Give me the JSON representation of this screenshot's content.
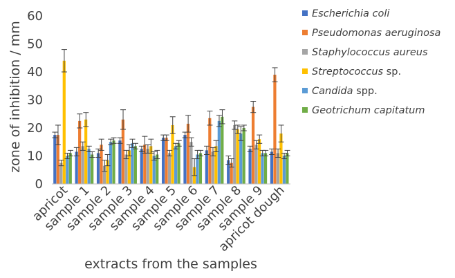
{
  "chart_data": {
    "type": "bar",
    "title": "",
    "xlabel": "extracts from the samples",
    "ylabel": "zone of inhibition / mm",
    "ylim": [
      0,
      60
    ],
    "yticks": [
      0,
      10,
      20,
      30,
      40,
      50,
      60
    ],
    "grid": false,
    "legend_position": "right",
    "categories": [
      "apricot",
      "sample 1",
      "sample 2",
      "sample 3",
      "sample 4",
      "sample 5",
      "sample 6",
      "sample 7",
      "sample 8",
      "sample 9",
      "apricot dough"
    ],
    "series": [
      {
        "name": "Escherichia coli",
        "name_suffix": "",
        "color": "#4472C4",
        "values": [
          17.5,
          11.5,
          11.0,
          15.5,
          12.5,
          16.5,
          17.5,
          12.0,
          8.5,
          12.5,
          11.5
        ],
        "errors": [
          1.0,
          1.5,
          1.5,
          1.0,
          1.0,
          1.0,
          1.0,
          1.5,
          1.5,
          1.0,
          1.0
        ]
      },
      {
        "name": "Pseudomonas aeruginosa",
        "name_suffix": "",
        "color": "#ED7D31",
        "values": [
          17.5,
          22.5,
          14.0,
          23.0,
          14.0,
          16.5,
          21.5,
          23.5,
          7.5,
          27.5,
          39.0
        ],
        "errors": [
          3.5,
          2.5,
          2.0,
          3.5,
          3.0,
          1.0,
          3.0,
          2.5,
          1.5,
          2.0,
          2.5
        ]
      },
      {
        "name": "Staphylococcus aureus",
        "name_suffix": "",
        "color": "#A5A5A5",
        "values": [
          7.5,
          13.5,
          6.5,
          10.5,
          12.5,
          11.0,
          15.0,
          11.5,
          21.0,
          14.0,
          11.0
        ],
        "errors": [
          1.0,
          1.5,
          2.0,
          1.5,
          1.5,
          1.0,
          1.5,
          1.5,
          1.5,
          1.5,
          1.5
        ]
      },
      {
        "name": "Streptococcus",
        "name_suffix": " sp.",
        "color": "#FFC000",
        "values": [
          44.0,
          23.0,
          8.5,
          12.0,
          13.5,
          21.0,
          6.0,
          13.5,
          19.5,
          16.0,
          18.0
        ],
        "errors": [
          4.0,
          2.5,
          2.0,
          2.0,
          2.5,
          3.0,
          3.0,
          2.0,
          1.5,
          1.5,
          3.0
        ]
      },
      {
        "name": "Candida",
        "name_suffix": " spp.",
        "color": "#5B9BD5",
        "values": [
          10.0,
          12.5,
          15.0,
          14.5,
          10.0,
          13.5,
          10.5,
          22.5,
          18.0,
          11.0,
          10.0
        ],
        "errors": [
          1.0,
          1.0,
          1.0,
          1.5,
          1.5,
          1.0,
          1.5,
          2.0,
          2.5,
          1.0,
          1.0
        ]
      },
      {
        "name": "Geotrichum capitatum",
        "name_suffix": "",
        "color": "#70AD47",
        "values": [
          11.0,
          10.5,
          15.5,
          13.5,
          10.5,
          14.5,
          11.0,
          24.0,
          20.0,
          11.0,
          11.0
        ],
        "errors": [
          1.0,
          1.0,
          1.0,
          1.0,
          1.5,
          1.0,
          1.0,
          2.5,
          1.0,
          1.0,
          1.0
        ]
      }
    ]
  }
}
